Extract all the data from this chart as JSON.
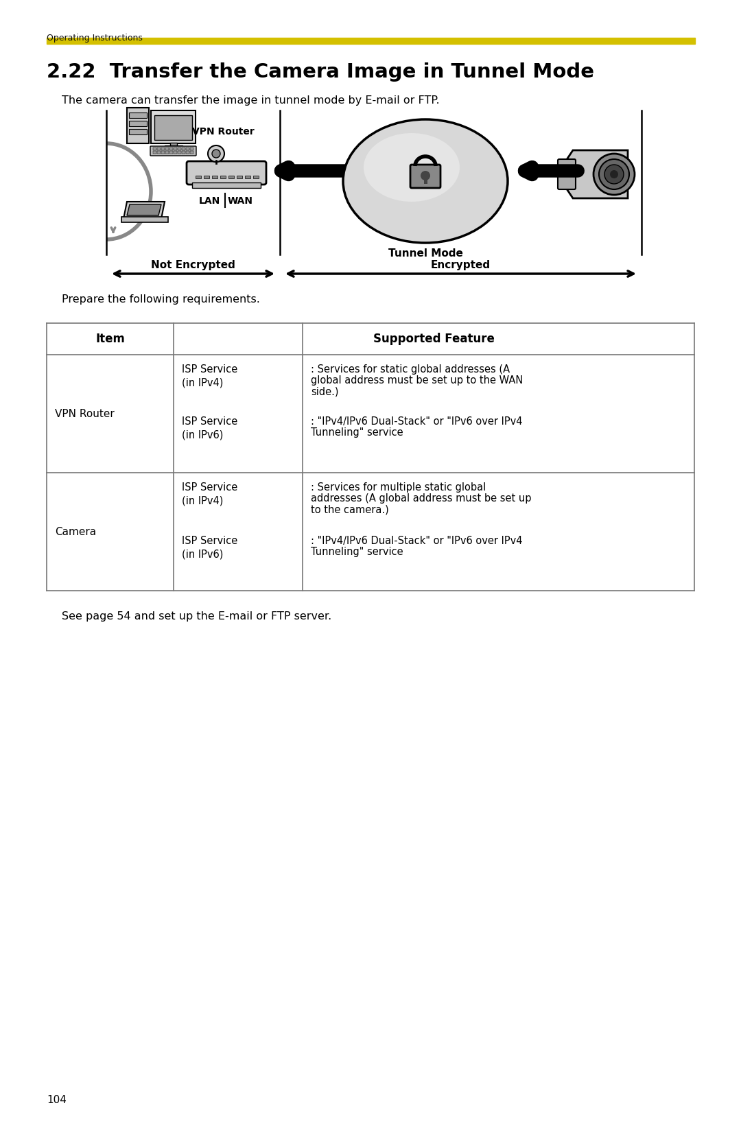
{
  "page_header": "Operating Instructions",
  "header_line_color": "#D4C000",
  "title": "2.22  Transfer the Camera Image in Tunnel Mode",
  "subtitle": "The camera can transfer the image in tunnel mode by E-mail or FTP.",
  "diagram_labels": {
    "vpn_router": "VPN Router",
    "lan": "LAN",
    "wan": "WAN",
    "tunnel_mode": "Tunnel Mode",
    "not_encrypted": "Not Encrypted",
    "encrypted": "Encrypted"
  },
  "prepare_text": "Prepare the following requirements.",
  "table_header": [
    "Item",
    "Supported Feature"
  ],
  "table_rows": [
    {
      "item": "VPN Router",
      "sub_rows": [
        {
          "service": "ISP Service\n(in IPv4)",
          "feature_lines": [
            ": Services for static global addresses (A",
            "global address must be set up to the WAN",
            "side.)"
          ]
        },
        {
          "service": "ISP Service\n(in IPv6)",
          "feature_lines": [
            ": \"IPv4/IPv6 Dual-Stack\" or \"IPv6 over IPv4",
            "Tunneling\" service"
          ]
        }
      ]
    },
    {
      "item": "Camera",
      "sub_rows": [
        {
          "service": "ISP Service\n(in IPv4)",
          "feature_lines": [
            ": Services for multiple static global",
            "addresses (A global address must be set up",
            "to the camera.)"
          ]
        },
        {
          "service": "ISP Service\n(in IPv6)",
          "feature_lines": [
            ": \"IPv4/IPv6 Dual-Stack\" or \"IPv6 over IPv4",
            "Tunneling\" service"
          ]
        }
      ]
    }
  ],
  "footer_text": "See page 54 and set up the E-mail or FTP server.",
  "page_number": "104",
  "bg_color": "#ffffff",
  "text_color": "#000000",
  "table_border_color": "#777777"
}
